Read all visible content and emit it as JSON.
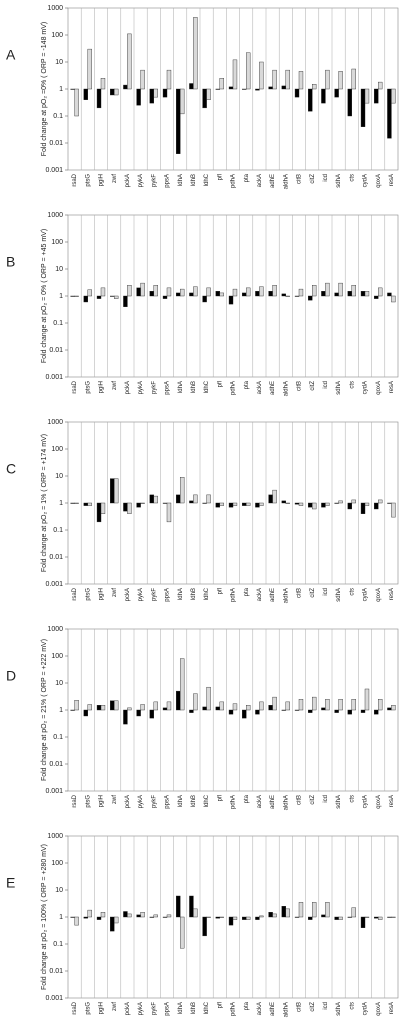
{
  "chart_data": [
    {
      "type": "bar",
      "panel_label": "A",
      "y_label": "Fold change at pO₂ =0% ( ORP = -148 mV)",
      "log_scale": true,
      "grid": true,
      "categories": [
        "rsaD",
        "ptsG",
        "pgiH",
        "zwf",
        "pckA",
        "pykA",
        "pykF",
        "ppsA",
        "ldhA",
        "ldhB",
        "ldhC",
        "pfl",
        "pdhA",
        "pta",
        "ackA",
        "adhE",
        "aldhA",
        "citB",
        "citZ",
        "icd",
        "sdhA",
        "cts",
        "cydA",
        "qoxA",
        "resA"
      ],
      "ylim": [
        0.001,
        1000
      ],
      "yticks": [
        0.001,
        0.01,
        0.1,
        1,
        10,
        100,
        1000
      ],
      "series": [
        {
          "color": "#000000",
          "values": [
            1,
            0.4,
            0.2,
            0.6,
            1.4,
            0.25,
            0.3,
            0.5,
            0.004,
            1.6,
            0.2,
            1,
            1.2,
            1,
            0.9,
            1.2,
            1.3,
            0.5,
            0.15,
            0.3,
            0.5,
            0.1,
            0.04,
            0.3,
            0.015
          ]
        },
        {
          "color": "#d9d9d9",
          "values": [
            0.1,
            30,
            2.5,
            0.6,
            110,
            5,
            0.5,
            5,
            0.12,
            450,
            0.4,
            2.5,
            12,
            22,
            10,
            5,
            5,
            4.5,
            1.5,
            5,
            4.5,
            5.5,
            0.3,
            1.8,
            0.3
          ]
        }
      ]
    },
    {
      "type": "bar",
      "panel_label": "B",
      "y_label": "Fold change at pO₂ = 0% ( ORP = +45 mV)",
      "log_scale": true,
      "grid": true,
      "categories": [
        "rsaD",
        "ptsG",
        "pgiH",
        "zwf",
        "pckA",
        "pykA",
        "pykF",
        "ppsA",
        "ldhA",
        "ldhB",
        "ldhC",
        "pfl",
        "pdhA",
        "pta",
        "ackA",
        "adhE",
        "aldhA",
        "citB",
        "citZ",
        "icd",
        "sdhA",
        "cts",
        "cydA",
        "qoxA",
        "resA"
      ],
      "ylim": [
        0.001,
        1000
      ],
      "yticks": [
        0.001,
        0.01,
        0.1,
        1,
        10,
        100,
        1000
      ],
      "series": [
        {
          "color": "#000000",
          "values": [
            1,
            0.6,
            0.8,
            1,
            0.4,
            2,
            1.5,
            0.8,
            1.3,
            1.3,
            0.6,
            1.5,
            0.5,
            1.3,
            1.5,
            1.5,
            1.2,
            1,
            0.7,
            1.5,
            1.3,
            1.5,
            1.5,
            0.8,
            1.3
          ]
        },
        {
          "color": "#d9d9d9",
          "values": [
            1,
            1.7,
            2,
            0.8,
            2.5,
            3,
            2.5,
            2,
            1.8,
            2.2,
            2,
            1.3,
            1.8,
            2,
            2.2,
            2.5,
            1,
            1.8,
            2.5,
            3,
            3,
            2.5,
            1.5,
            2,
            0.6
          ]
        }
      ]
    },
    {
      "type": "bar",
      "panel_label": "C",
      "y_label": "Fold change at pO₂ = 1% ( ORP = +174 mV)",
      "log_scale": true,
      "grid": true,
      "categories": [
        "rsaD",
        "ptsG",
        "pgiH",
        "zwf",
        "pckA",
        "pykA",
        "pykF",
        "ppsA",
        "ldhA",
        "ldhB",
        "ldhC",
        "pfl",
        "pdhA",
        "pta",
        "ackA",
        "adhE",
        "aldhA",
        "citB",
        "citZ",
        "icd",
        "sdhA",
        "cts",
        "cydA",
        "qoxA",
        "resA"
      ],
      "ylim": [
        0.001,
        1000
      ],
      "yticks": [
        0.001,
        0.01,
        0.1,
        1,
        10,
        100,
        1000
      ],
      "series": [
        {
          "color": "#000000",
          "values": [
            1,
            0.8,
            0.2,
            8,
            0.5,
            0.7,
            2,
            1,
            2,
            1.2,
            1,
            0.7,
            0.7,
            0.8,
            0.7,
            2,
            1.2,
            0.9,
            0.7,
            0.7,
            1,
            0.6,
            0.4,
            0.6,
            1
          ]
        },
        {
          "color": "#d9d9d9",
          "values": [
            1,
            0.8,
            0.4,
            8,
            0.4,
            1,
            1.8,
            0.2,
            9,
            2,
            2,
            0.8,
            0.8,
            0.8,
            0.8,
            3,
            1,
            0.8,
            0.6,
            0.8,
            1.2,
            1.3,
            0.8,
            1.3,
            0.3
          ]
        }
      ]
    },
    {
      "type": "bar",
      "panel_label": "D",
      "y_label": "Fold change at pO₂ = 21% ( ORP = +222 mV)",
      "log_scale": true,
      "grid": true,
      "categories": [
        "rsaD",
        "ptsG",
        "pgiH",
        "zwf",
        "pckA",
        "pykA",
        "pykF",
        "ppsA",
        "ldhA",
        "ldhB",
        "ldhC",
        "pfl",
        "pdhA",
        "pta",
        "ackA",
        "adhE",
        "aldhA",
        "citB",
        "citZ",
        "icd",
        "sdhA",
        "cts",
        "cydA",
        "qoxA",
        "resA"
      ],
      "ylim": [
        0.001,
        1000
      ],
      "yticks": [
        0.001,
        0.01,
        0.1,
        1,
        10,
        100,
        1000
      ],
      "series": [
        {
          "color": "#000000",
          "values": [
            1,
            0.6,
            1.5,
            2.2,
            0.3,
            0.6,
            0.5,
            1.2,
            5,
            0.8,
            1.3,
            1.3,
            0.7,
            0.5,
            0.7,
            1.5,
            1,
            1,
            0.8,
            1.2,
            0.8,
            0.7,
            0.8,
            0.7,
            1.2
          ]
        },
        {
          "color": "#d9d9d9",
          "values": [
            2.3,
            1.6,
            1.5,
            2.2,
            1.2,
            1.6,
            2,
            2,
            80,
            4,
            7,
            2,
            1.7,
            1.5,
            2,
            3,
            2,
            2.5,
            3,
            2.5,
            2.5,
            2.5,
            6,
            2.5,
            1.5
          ]
        }
      ]
    },
    {
      "type": "bar",
      "panel_label": "E",
      "y_label": "Fold change at pO₂ = 100% ( ORP = +280 mV)",
      "log_scale": true,
      "grid": true,
      "categories": [
        "rsaD",
        "ptsG",
        "pgiH",
        "zwf",
        "pckA",
        "pykA",
        "pykF",
        "ppsA",
        "ldhA",
        "ldhB",
        "ldhC",
        "pfl",
        "pdhA",
        "pta",
        "ackA",
        "adhE",
        "aldhA",
        "citB",
        "citZ",
        "icd",
        "sdhA",
        "cts",
        "cydA",
        "qoxA",
        "resA"
      ],
      "ylim": [
        0.001,
        1000
      ],
      "yticks": [
        0.001,
        0.01,
        0.1,
        1,
        10,
        100,
        1000
      ],
      "series": [
        {
          "color": "#000000",
          "values": [
            1,
            0.9,
            0.8,
            0.3,
            1.6,
            1.2,
            1,
            1,
            6,
            6,
            0.2,
            0.9,
            0.5,
            0.8,
            0.8,
            1.5,
            2.5,
            1,
            0.8,
            1.2,
            0.8,
            1,
            0.4,
            0.9,
            1
          ]
        },
        {
          "color": "#d9d9d9",
          "values": [
            0.5,
            1.8,
            1.5,
            0.6,
            1.3,
            1.5,
            1.2,
            1.2,
            0.07,
            2,
            1,
            1,
            0.8,
            0.8,
            1.1,
            1.3,
            2,
            3.5,
            3.5,
            3.5,
            0.8,
            2.2,
            1,
            0.8,
            1
          ]
        }
      ]
    }
  ]
}
